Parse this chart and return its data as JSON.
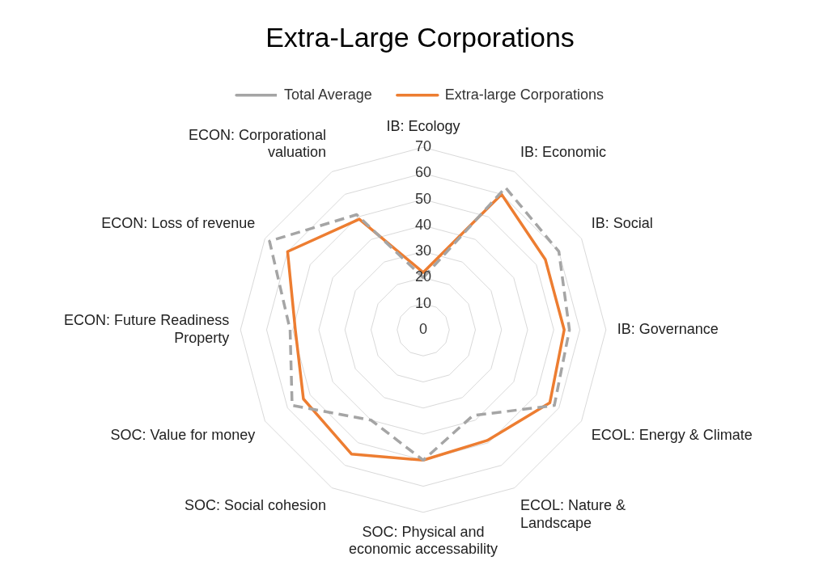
{
  "chart_data": {
    "type": "radar",
    "title": "Extra-Large Corporations",
    "categories": [
      "IB: Ecology",
      "IB: Economic",
      "IB: Social",
      "IB: Governance",
      "ECOL: Energy & Climate",
      "ECOL: Nature & Landscape",
      "SOC: Physical and economic accessability",
      "SOC: Social cohesion",
      "SOC: Value for money",
      "ECON: Future Readiness Property",
      "ECON: Loss of revenue",
      "ECON: Corporational valuation"
    ],
    "series": [
      {
        "name": "Total Average",
        "color": "#a5a5a5",
        "line_style": "dashed",
        "values": [
          20,
          63,
          60,
          56,
          58,
          38,
          50,
          40,
          58,
          51,
          68,
          51
        ]
      },
      {
        "name": "Extra-large Corporations",
        "color": "#ed7d31",
        "line_style": "solid",
        "values": [
          22,
          60,
          54,
          54,
          56,
          49,
          50,
          55,
          53,
          49,
          60,
          49
        ]
      }
    ],
    "ylim": [
      0,
      70
    ],
    "yticks": [
      0,
      10,
      20,
      30,
      40,
      50,
      60,
      70
    ],
    "grid": true,
    "legend": "top",
    "marker": "none"
  }
}
